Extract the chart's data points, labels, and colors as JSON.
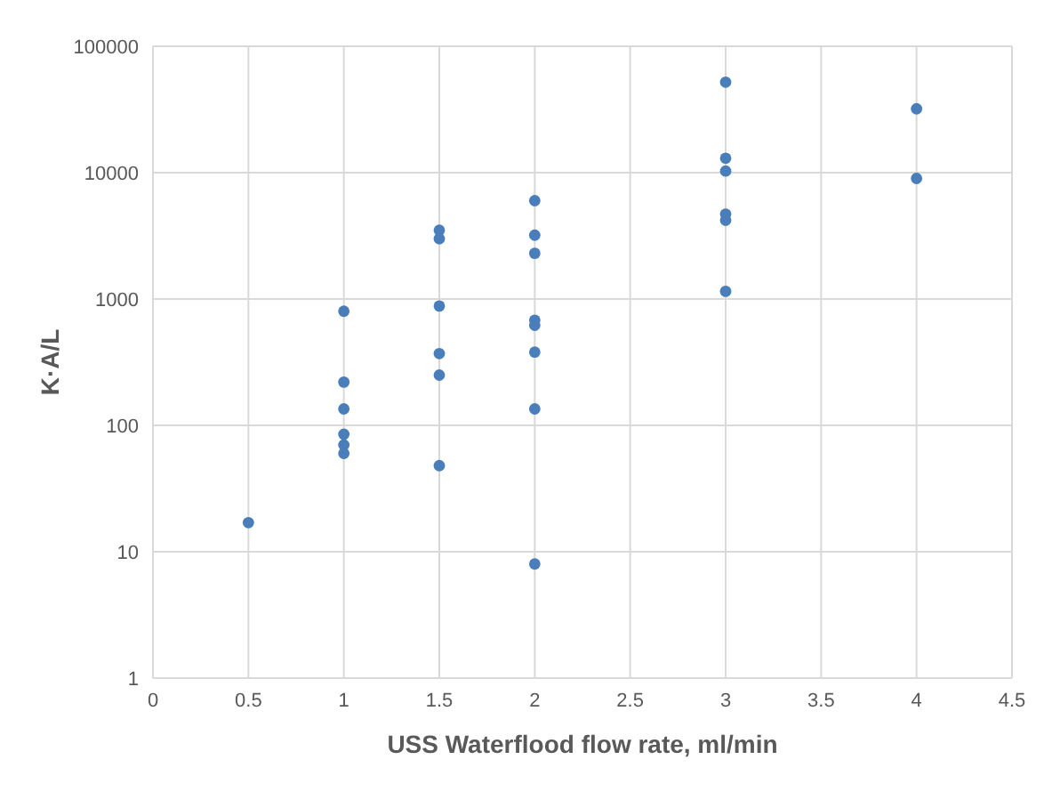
{
  "chart_data": {
    "type": "scatter",
    "xlabel": "USS Waterflood flow rate, ml/min",
    "ylabel": "K·A/L",
    "x": [
      0.5,
      1,
      1,
      1,
      1,
      1,
      1,
      1.5,
      1.5,
      1.5,
      1.5,
      1.5,
      1.5,
      2,
      2,
      2,
      2,
      2,
      2,
      2,
      2,
      3,
      3,
      3,
      3,
      3,
      3,
      4,
      4
    ],
    "values": [
      17,
      800,
      220,
      135,
      85,
      70,
      60,
      3500,
      3000,
      880,
      370,
      250,
      48,
      6000,
      3200,
      2300,
      680,
      620,
      380,
      135,
      8,
      52000,
      13000,
      10300,
      4700,
      4200,
      1150,
      32000,
      9000
    ],
    "color": "#4a7ebb",
    "marker": "circle",
    "log": "y",
    "grid": true,
    "legend": false,
    "xlim": [
      0,
      4.5
    ],
    "xticks": [
      0,
      0.5,
      1,
      1.5,
      2,
      2.5,
      3,
      3.5,
      4,
      4.5
    ],
    "ylim": [
      1,
      100000
    ],
    "yticks": [
      1,
      10,
      100,
      1000,
      10000,
      100000
    ]
  }
}
